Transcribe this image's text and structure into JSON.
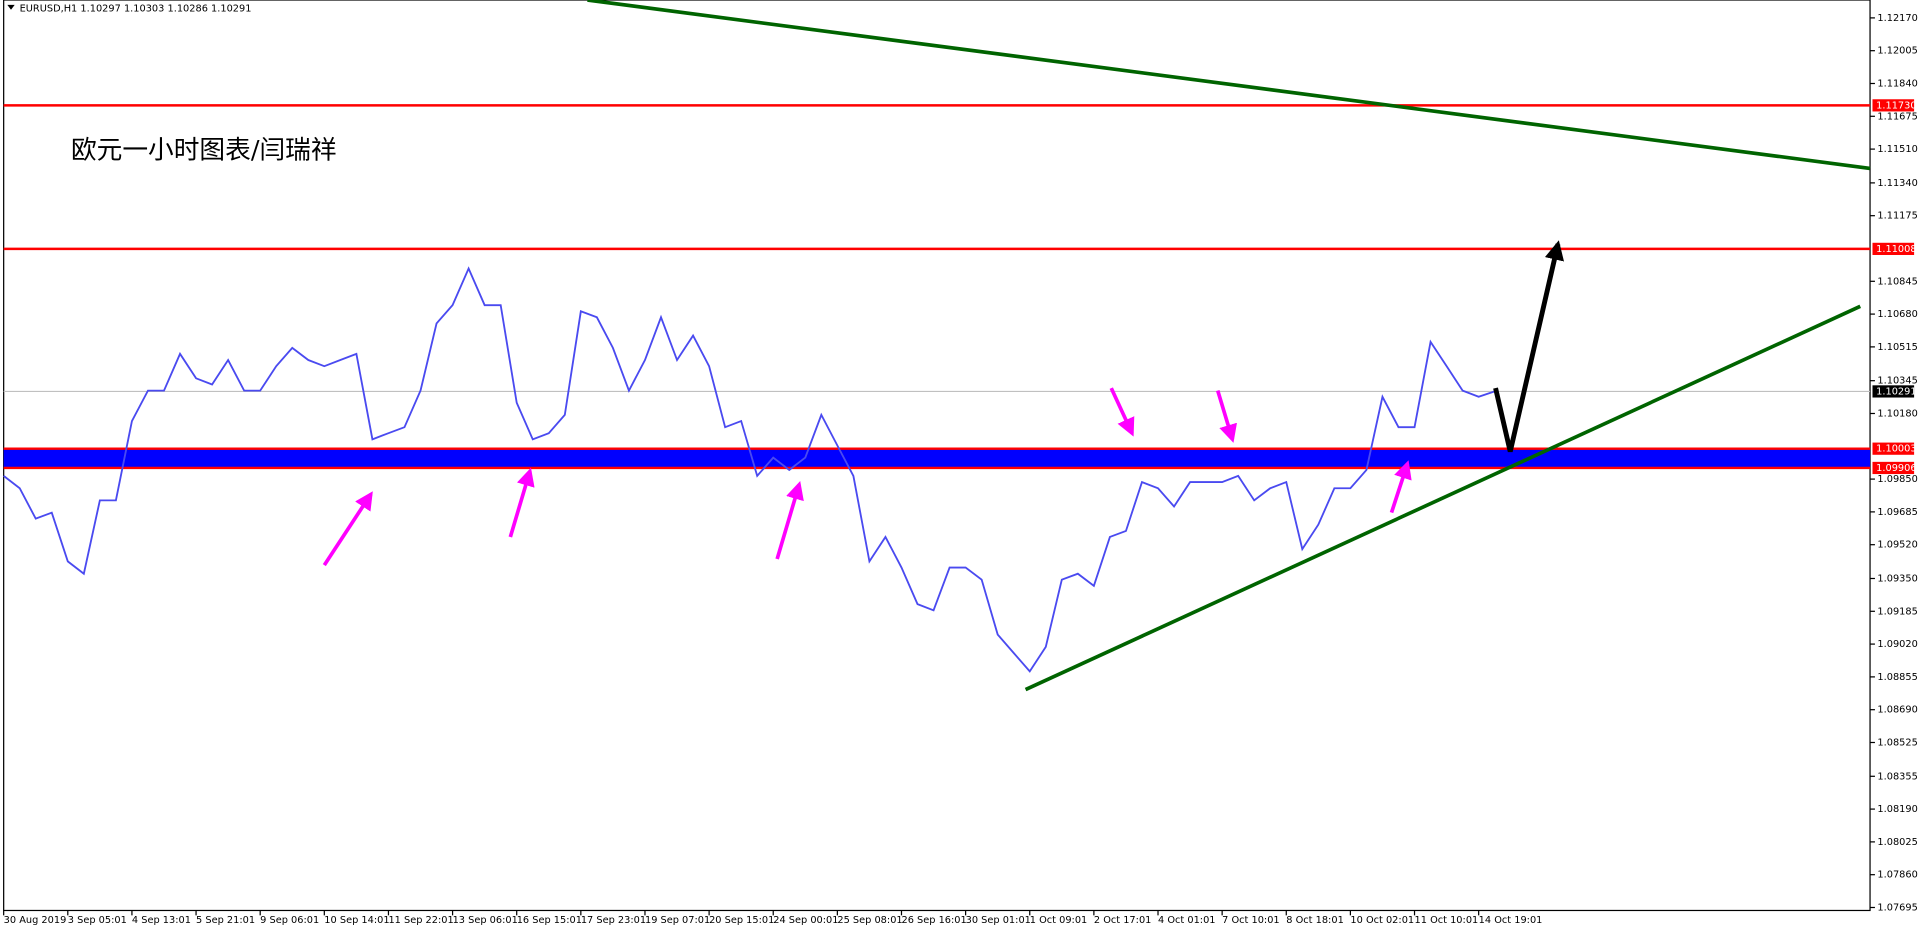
{
  "chart_data": {
    "type": "line",
    "header": "EURUSD,H1  1.10297 1.10303 1.10286 1.10291",
    "title": "欧元一小时图表/闫瑞祥",
    "color": "#4a4af0",
    "categories": [
      "30 Aug 2019",
      null,
      null,
      null,
      "3 Sep 05:01",
      null,
      null,
      null,
      "4 Sep 13:01",
      null,
      null,
      null,
      "5 Sep 21:01",
      null,
      null,
      null,
      "9 Sep 06:01",
      null,
      null,
      null,
      "10 Sep 14:01",
      null,
      null,
      null,
      "11 Sep 22:01",
      null,
      null,
      null,
      "13 Sep 06:01",
      null,
      null,
      null,
      "16 Sep 15:01",
      null,
      null,
      null,
      "17 Sep 23:01",
      null,
      null,
      null,
      "19 Sep 07:01",
      null,
      null,
      null,
      "20 Sep 15:01",
      null,
      null,
      null,
      "24 Sep 00:01",
      null,
      null,
      null,
      "25 Sep 08:01",
      null,
      null,
      null,
      "26 Sep 16:01",
      null,
      null,
      null,
      "30 Sep 01:01",
      null,
      null,
      null,
      "1 Oct 09:01",
      null,
      null,
      null,
      "2 Oct 17:01",
      null,
      null,
      null,
      "4 Oct 01:01",
      null,
      null,
      null,
      "7 Oct 10:01",
      null,
      null,
      null,
      "8 Oct 18:01",
      null,
      null,
      null,
      "10 Oct 02:01",
      null,
      null,
      null,
      "11 Oct 10:01",
      null,
      null,
      null,
      "14 Oct 19:01",
      null
    ],
    "values": [
      1.09866,
      1.09804,
      1.09651,
      1.09681,
      1.09436,
      1.09374,
      1.09743,
      1.09743,
      1.10142,
      1.10295,
      1.10295,
      1.1048,
      1.10357,
      1.10326,
      1.10449,
      1.10295,
      1.10295,
      1.10418,
      1.1051,
      1.10449,
      1.10418,
      1.10449,
      1.1048,
      1.1005,
      1.10081,
      1.10111,
      1.10295,
      1.10633,
      1.10725,
      1.10909,
      1.10725,
      1.10725,
      1.10234,
      1.1005,
      1.10081,
      1.10173,
      1.10694,
      1.10664,
      1.1051,
      1.10295,
      1.10449,
      1.10664,
      1.10449,
      1.10572,
      1.10418,
      1.10111,
      1.10142,
      1.09866,
      1.09958,
      1.09896,
      1.09958,
      1.10173,
      1.10019,
      1.09866,
      1.09436,
      1.09559,
      1.09405,
      1.09221,
      1.0919,
      1.09405,
      1.09405,
      1.09344,
      1.09068,
      1.08975,
      1.08883,
      1.09006,
      1.09344,
      1.09374,
      1.09313,
      1.09559,
      1.09589,
      1.09835,
      1.09804,
      1.09712,
      1.09835,
      1.09835,
      1.09835,
      1.09866,
      1.09743,
      1.09804,
      1.09835,
      1.09498,
      1.09621,
      1.09804,
      1.09804,
      1.09896,
      1.10264,
      1.10111,
      1.10111,
      1.1054,
      1.10418,
      1.10295,
      1.10264,
      1.10291
    ],
    "ylim": [
      1.0768,
      1.1226
    ],
    "yticks": [
      {
        "value": 1.1217,
        "label": "1.12170"
      },
      {
        "value": 1.12005,
        "label": "1.12005"
      },
      {
        "value": 1.1184,
        "label": "1.11840"
      },
      {
        "value": 1.11675,
        "label": "1.11675"
      },
      {
        "value": 1.1151,
        "label": "1.11510"
      },
      {
        "value": 1.1134,
        "label": "1.11340"
      },
      {
        "value": 1.11175,
        "label": "1.11175"
      },
      {
        "value": 1.10845,
        "label": "1.10845"
      },
      {
        "value": 1.1068,
        "label": "1.10680"
      },
      {
        "value": 1.10515,
        "label": "1.10515"
      },
      {
        "value": 1.10345,
        "label": "1.10345"
      },
      {
        "value": 1.1018,
        "label": "1.10180"
      },
      {
        "value": 1.0985,
        "label": "1.09850"
      },
      {
        "value": 1.09685,
        "label": "1.09685"
      },
      {
        "value": 1.0952,
        "label": "1.09520"
      },
      {
        "value": 1.0935,
        "label": "1.09350"
      },
      {
        "value": 1.09185,
        "label": "1.09185"
      },
      {
        "value": 1.0902,
        "label": "1.09020"
      },
      {
        "value": 1.08855,
        "label": "1.08855"
      },
      {
        "value": 1.0869,
        "label": "1.08690"
      },
      {
        "value": 1.08525,
        "label": "1.08525"
      },
      {
        "value": 1.08355,
        "label": "1.08355"
      },
      {
        "value": 1.0819,
        "label": "1.08190"
      },
      {
        "value": 1.08025,
        "label": "1.08025"
      },
      {
        "value": 1.0786,
        "label": "1.07860"
      },
      {
        "value": 1.07695,
        "label": "1.07695"
      }
    ],
    "levels": [
      {
        "value": 1.1173,
        "label": "1.11730",
        "color": "#ff0000"
      },
      {
        "value": 1.11008,
        "label": "1.11008",
        "color": "#ff0000"
      },
      {
        "value": 1.10003,
        "label": "1.10003",
        "color": "#ff0000"
      },
      {
        "value": 1.09906,
        "label": "1.09906",
        "color": "#ff0000"
      }
    ],
    "zone_color": "#0000ff",
    "last_price": {
      "value": 1.10291,
      "label": "1.10291"
    }
  }
}
